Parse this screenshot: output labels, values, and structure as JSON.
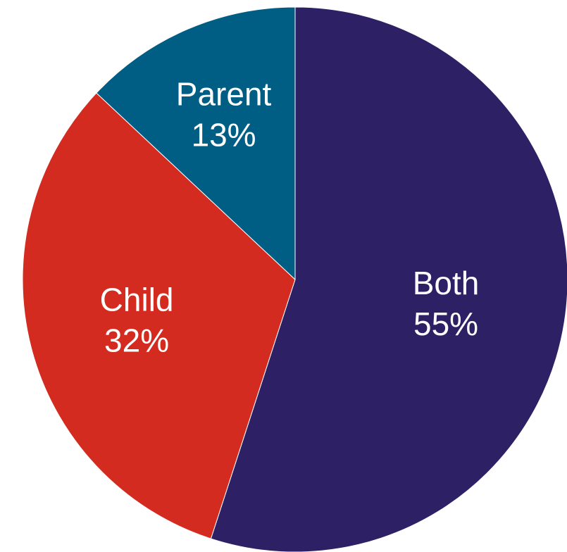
{
  "chart_data": {
    "type": "pie",
    "title": "",
    "categories": [
      "Both",
      "Child",
      "Parent"
    ],
    "values": [
      55,
      32,
      13
    ],
    "labels": [
      {
        "name": "Both",
        "value": "55%"
      },
      {
        "name": "Child",
        "value": "32%"
      },
      {
        "name": "Parent",
        "value": "13%"
      }
    ],
    "colors": [
      "#2e2064",
      "#d42b20",
      "#005e84"
    ],
    "legend": "none",
    "start": "12 o'clock",
    "direction": "clockwise"
  }
}
